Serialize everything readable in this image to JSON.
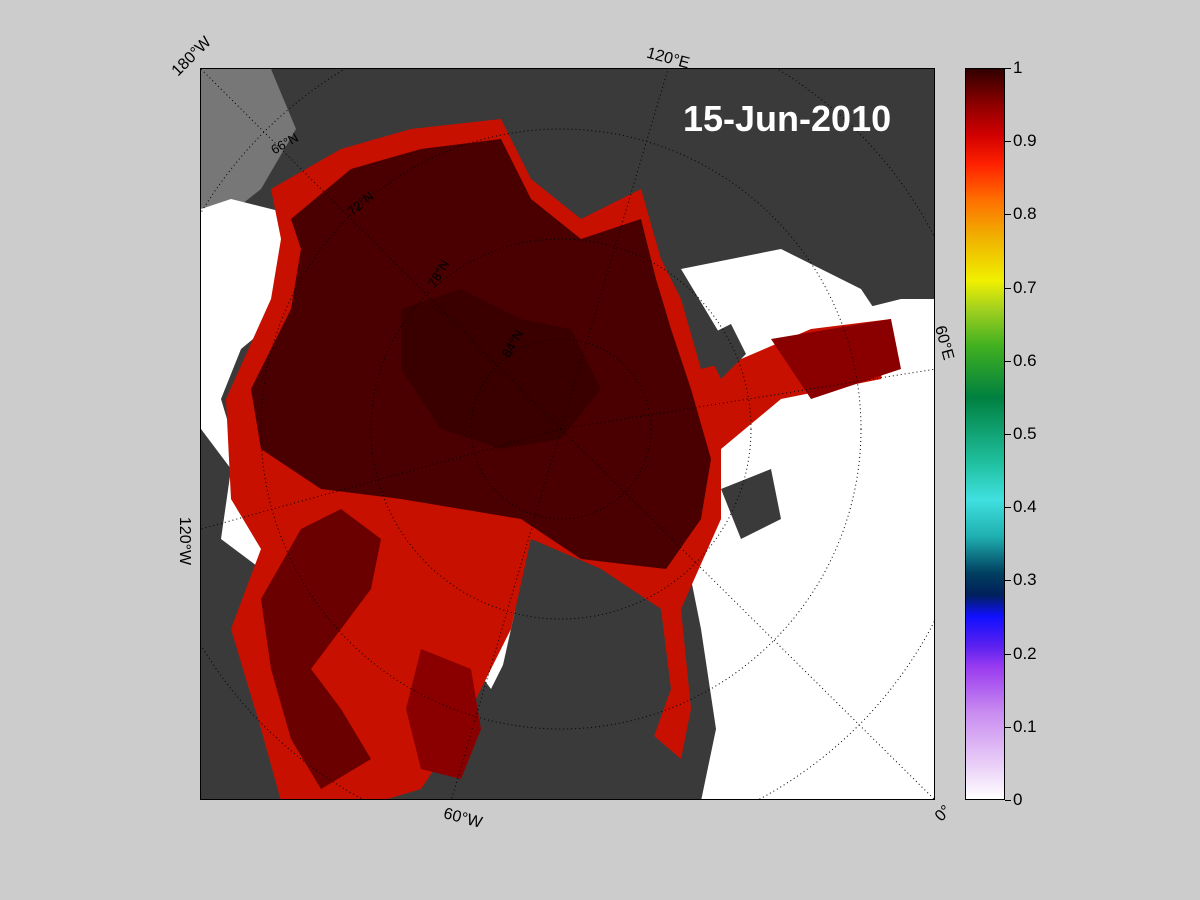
{
  "date": "15-Jun-2010",
  "longitude_labels": [
    {
      "id": "lon-180w",
      "text": "180°W"
    },
    {
      "id": "lon-120e",
      "text": "120°E"
    },
    {
      "id": "lon-60e",
      "text": "60°E"
    },
    {
      "id": "lon-120w",
      "text": "120°W"
    },
    {
      "id": "lon-60w",
      "text": "60°W"
    },
    {
      "id": "lon-0",
      "text": "0°"
    }
  ],
  "latitude_labels": [
    {
      "id": "lat-66n",
      "text": "66°N"
    },
    {
      "id": "lat-72n",
      "text": "72°N"
    },
    {
      "id": "lat-78n",
      "text": "78°N"
    },
    {
      "id": "lat-84n",
      "text": "84°N"
    }
  ],
  "colorbar": {
    "min": 0,
    "max": 1,
    "ticks": [
      "0",
      "0.1",
      "0.2",
      "0.3",
      "0.4",
      "0.5",
      "0.6",
      "0.7",
      "0.8",
      "0.9",
      "1"
    ]
  },
  "colors": {
    "figure_background": "#cccccc",
    "land": "#3a3a3a",
    "open_water": "#ffffff",
    "ice_full": "#4a0000",
    "ice_edge": "#c81000"
  }
}
